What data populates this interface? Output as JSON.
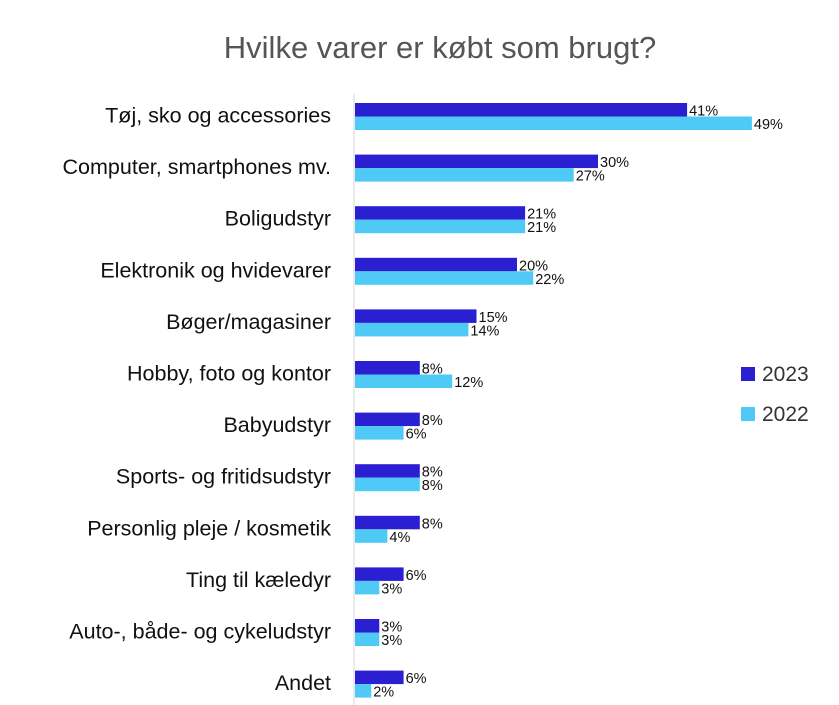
{
  "chart_data": {
    "type": "bar",
    "orientation": "horizontal",
    "title": "Hvilke varer er købt som brugt?",
    "xlabel": "",
    "ylabel": "",
    "xlim": [
      0,
      50
    ],
    "grid": false,
    "legend_position": "right",
    "categories": [
      "Tøj, sko og accessories",
      "Computer, smartphones mv.",
      "Boligudstyr",
      "Elektronik og hvidevarer",
      "Bøger/magasiner",
      "Hobby, foto og kontor",
      "Babyudstyr",
      "Sports- og fritidsudstyr",
      "Personlig pleje / kosmetik",
      "Ting til kæledyr",
      "Auto-, både- og cykeludstyr",
      "Andet"
    ],
    "series": [
      {
        "name": "2023",
        "color": "#2a1fd1",
        "values": [
          41,
          30,
          21,
          20,
          15,
          8,
          8,
          8,
          8,
          6,
          3,
          6
        ]
      },
      {
        "name": "2022",
        "color": "#4fc9f5",
        "values": [
          49,
          27,
          21,
          22,
          14,
          12,
          6,
          8,
          4,
          3,
          3,
          2
        ]
      }
    ],
    "value_suffix": "%"
  }
}
